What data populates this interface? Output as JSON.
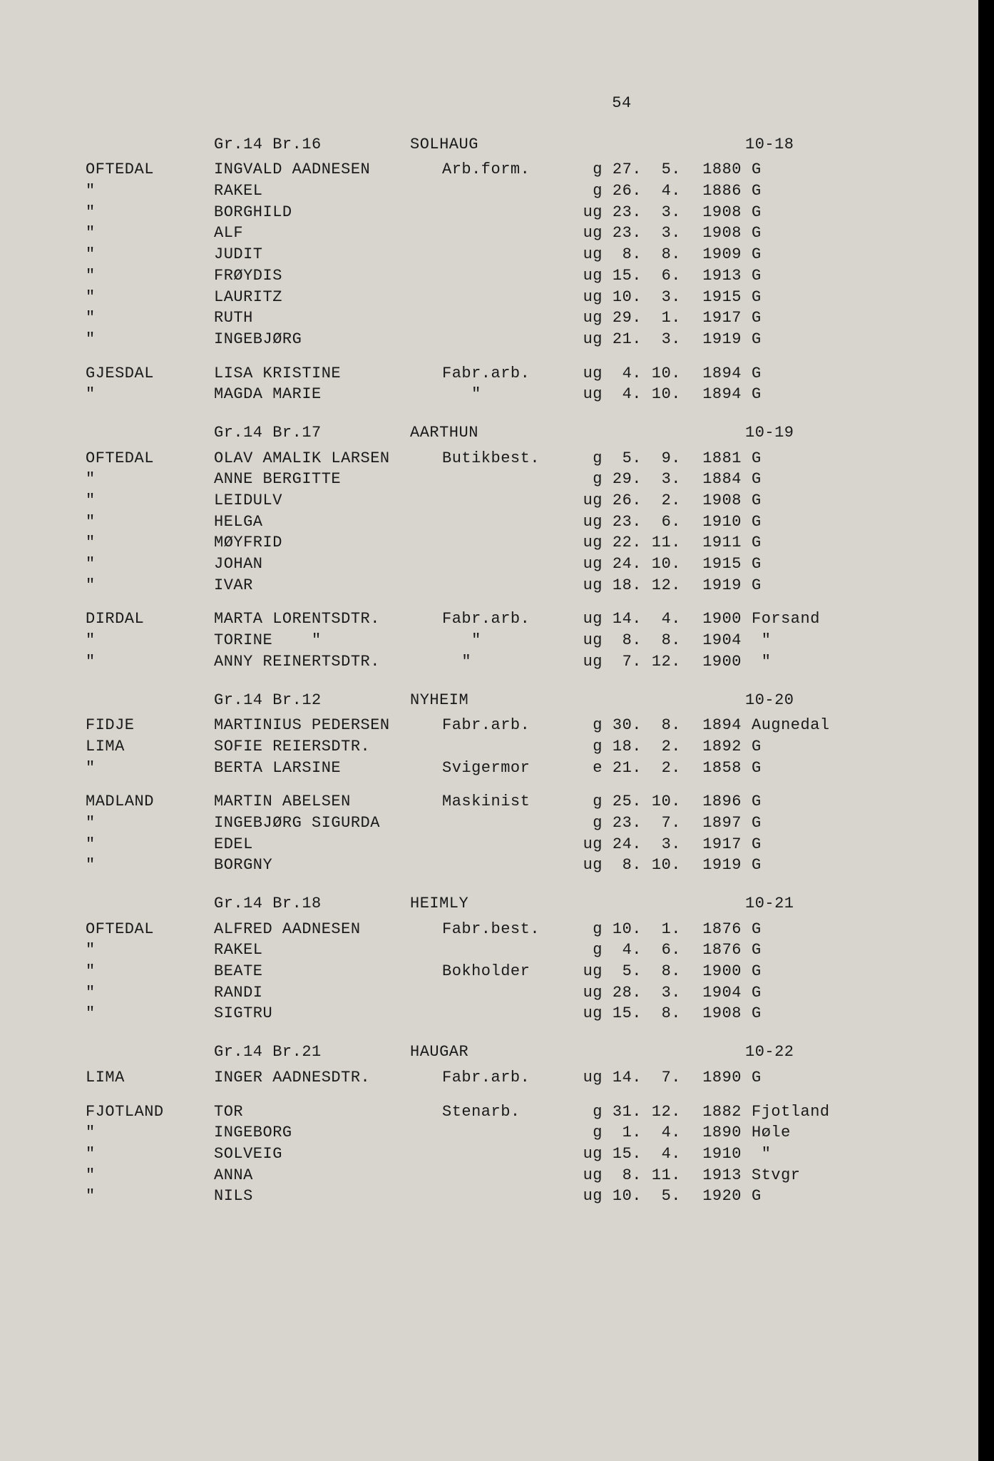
{
  "page_number": "54",
  "font": {
    "family": "Courier New",
    "size_pt": 16,
    "color": "#1a1a1a"
  },
  "background_color": "#d8d4ce",
  "sections": [
    {
      "header": {
        "grbr": "Gr.14 Br.16",
        "place": "SOLHAUG",
        "code": "10-18"
      },
      "blocks": [
        {
          "rows": [
            {
              "surname": "OFTEDAL",
              "name": "INGVALD AADNESEN",
              "occ": "Arb.form.",
              "ms": "g",
              "d": "27.",
              "m": "5.",
              "y": "1880",
              "pl": "G"
            },
            {
              "surname": "\"",
              "name": "RAKEL",
              "occ": "",
              "ms": "g",
              "d": "26.",
              "m": "4.",
              "y": "1886",
              "pl": "G"
            },
            {
              "surname": "\"",
              "name": "BORGHILD",
              "occ": "",
              "ms": "ug",
              "d": "23.",
              "m": "3.",
              "y": "1908",
              "pl": "G"
            },
            {
              "surname": "\"",
              "name": "ALF",
              "occ": "",
              "ms": "ug",
              "d": "23.",
              "m": "3.",
              "y": "1908",
              "pl": "G"
            },
            {
              "surname": "\"",
              "name": "JUDIT",
              "occ": "",
              "ms": "ug",
              "d": "8.",
              "m": "8.",
              "y": "1909",
              "pl": "G"
            },
            {
              "surname": "\"",
              "name": "FRØYDIS",
              "occ": "",
              "ms": "ug",
              "d": "15.",
              "m": "6.",
              "y": "1913",
              "pl": "G"
            },
            {
              "surname": "\"",
              "name": "LAURITZ",
              "occ": "",
              "ms": "ug",
              "d": "10.",
              "m": "3.",
              "y": "1915",
              "pl": "G"
            },
            {
              "surname": "\"",
              "name": "RUTH",
              "occ": "",
              "ms": "ug",
              "d": "29.",
              "m": "1.",
              "y": "1917",
              "pl": "G"
            },
            {
              "surname": "\"",
              "name": "INGEBJØRG",
              "occ": "",
              "ms": "ug",
              "d": "21.",
              "m": "3.",
              "y": "1919",
              "pl": "G"
            }
          ]
        },
        {
          "rows": [
            {
              "surname": "GJESDAL",
              "name": "LISA KRISTINE",
              "occ": "Fabr.arb.",
              "ms": "ug",
              "d": "4.",
              "m": "10.",
              "y": "1894",
              "pl": "G"
            },
            {
              "surname": "\"",
              "name": "MAGDA MARIE",
              "occ": "   \"",
              "ms": "ug",
              "d": "4.",
              "m": "10.",
              "y": "1894",
              "pl": "G"
            }
          ]
        }
      ]
    },
    {
      "header": {
        "grbr": "Gr.14 Br.17",
        "place": "AARTHUN",
        "code": "10-19"
      },
      "blocks": [
        {
          "rows": [
            {
              "surname": "OFTEDAL",
              "name": "OLAV AMALIK LARSEN",
              "occ": "Butikbest.",
              "ms": "g",
              "d": "5.",
              "m": "9.",
              "y": "1881",
              "pl": "G"
            },
            {
              "surname": "\"",
              "name": "ANNE BERGITTE",
              "occ": "",
              "ms": "g",
              "d": "29.",
              "m": "3.",
              "y": "1884",
              "pl": "G"
            },
            {
              "surname": "\"",
              "name": "LEIDULV",
              "occ": "",
              "ms": "ug",
              "d": "26.",
              "m": "2.",
              "y": "1908",
              "pl": "G"
            },
            {
              "surname": "\"",
              "name": "HELGA",
              "occ": "",
              "ms": "ug",
              "d": "23.",
              "m": "6.",
              "y": "1910",
              "pl": "G"
            },
            {
              "surname": "\"",
              "name": "MØYFRID",
              "occ": "",
              "ms": "ug",
              "d": "22.",
              "m": "11.",
              "y": "1911",
              "pl": "G"
            },
            {
              "surname": "\"",
              "name": "JOHAN",
              "occ": "",
              "ms": "ug",
              "d": "24.",
              "m": "10.",
              "y": "1915",
              "pl": "G"
            },
            {
              "surname": "\"",
              "name": "IVAR",
              "occ": "",
              "ms": "ug",
              "d": "18.",
              "m": "12.",
              "y": "1919",
              "pl": "G"
            }
          ]
        },
        {
          "rows": [
            {
              "surname": "DIRDAL",
              "name": "MARTA LORENTSDTR.",
              "occ": "Fabr.arb.",
              "ms": "ug",
              "d": "14.",
              "m": "4.",
              "y": "1900",
              "pl": "Forsand"
            },
            {
              "surname": "\"",
              "name": "TORINE    \"",
              "occ": "   \"",
              "ms": "ug",
              "d": "8.",
              "m": "8.",
              "y": "1904",
              "pl": " \""
            },
            {
              "surname": "\"",
              "name": "ANNY REINERTSDTR.",
              "occ": "  \"",
              "ms": "ug",
              "d": "7.",
              "m": "12.",
              "y": "1900",
              "pl": " \""
            }
          ]
        }
      ]
    },
    {
      "header": {
        "grbr": "Gr.14 Br.12",
        "place": "NYHEIM",
        "code": "10-20"
      },
      "blocks": [
        {
          "rows": [
            {
              "surname": "FIDJE",
              "name": "MARTINIUS PEDERSEN",
              "occ": "Fabr.arb.",
              "ms": "g",
              "d": "30.",
              "m": "8.",
              "y": "1894",
              "pl": "Augnedal"
            },
            {
              "surname": "LIMA",
              "name": "SOFIE REIERSDTR.",
              "occ": "",
              "ms": "g",
              "d": "18.",
              "m": "2.",
              "y": "1892",
              "pl": "G"
            },
            {
              "surname": "\"",
              "name": "BERTA LARSINE",
              "occ": "Svigermor",
              "ms": "e",
              "d": "21.",
              "m": "2.",
              "y": "1858",
              "pl": "G"
            }
          ]
        },
        {
          "rows": [
            {
              "surname": "MADLAND",
              "name": "MARTIN ABELSEN",
              "occ": "Maskinist",
              "ms": "g",
              "d": "25.",
              "m": "10.",
              "y": "1896",
              "pl": "G"
            },
            {
              "surname": "\"",
              "name": "INGEBJØRG SIGURDA",
              "occ": "",
              "ms": "g",
              "d": "23.",
              "m": "7.",
              "y": "1897",
              "pl": "G"
            },
            {
              "surname": "\"",
              "name": "EDEL",
              "occ": "",
              "ms": "ug",
              "d": "24.",
              "m": "3.",
              "y": "1917",
              "pl": "G"
            },
            {
              "surname": "\"",
              "name": "BORGNY",
              "occ": "",
              "ms": "ug",
              "d": "8.",
              "m": "10.",
              "y": "1919",
              "pl": "G"
            }
          ]
        }
      ]
    },
    {
      "header": {
        "grbr": "Gr.14 Br.18",
        "place": "HEIMLY",
        "code": "10-21"
      },
      "blocks": [
        {
          "rows": [
            {
              "surname": "OFTEDAL",
              "name": "ALFRED AADNESEN",
              "occ": "Fabr.best.",
              "ms": "g",
              "d": "10.",
              "m": "1.",
              "y": "1876",
              "pl": "G"
            },
            {
              "surname": "\"",
              "name": "RAKEL",
              "occ": "",
              "ms": "g",
              "d": "4.",
              "m": "6.",
              "y": "1876",
              "pl": "G"
            },
            {
              "surname": "\"",
              "name": "BEATE",
              "occ": "Bokholder",
              "ms": "ug",
              "d": "5.",
              "m": "8.",
              "y": "1900",
              "pl": "G"
            },
            {
              "surname": "\"",
              "name": "RANDI",
              "occ": "",
              "ms": "ug",
              "d": "28.",
              "m": "3.",
              "y": "1904",
              "pl": "G"
            },
            {
              "surname": "\"",
              "name": "SIGTRU",
              "occ": "",
              "ms": "ug",
              "d": "15.",
              "m": "8.",
              "y": "1908",
              "pl": "G"
            }
          ]
        }
      ]
    },
    {
      "header": {
        "grbr": "Gr.14 Br.21",
        "place": "HAUGAR",
        "code": "10-22"
      },
      "blocks": [
        {
          "rows": [
            {
              "surname": "LIMA",
              "name": "INGER AADNESDTR.",
              "occ": "Fabr.arb.",
              "ms": "ug",
              "d": "14.",
              "m": "7.",
              "y": "1890",
              "pl": "G"
            }
          ]
        },
        {
          "rows": [
            {
              "surname": "FJOTLAND",
              "name": "TOR",
              "occ": "Stenarb.",
              "ms": "g",
              "d": "31.",
              "m": "12.",
              "y": "1882",
              "pl": "Fjotland"
            },
            {
              "surname": "\"",
              "name": "INGEBORG",
              "occ": "",
              "ms": "g",
              "d": "1.",
              "m": "4.",
              "y": "1890",
              "pl": "Høle"
            },
            {
              "surname": "\"",
              "name": "SOLVEIG",
              "occ": "",
              "ms": "ug",
              "d": "15.",
              "m": "4.",
              "y": "1910",
              "pl": " \""
            },
            {
              "surname": "\"",
              "name": "ANNA",
              "occ": "",
              "ms": "ug",
              "d": "8.",
              "m": "11.",
              "y": "1913",
              "pl": "Stvgr"
            },
            {
              "surname": "\"",
              "name": "NILS",
              "occ": "",
              "ms": "ug",
              "d": "10.",
              "m": "5.",
              "y": "1920",
              "pl": "G"
            }
          ]
        }
      ]
    }
  ]
}
